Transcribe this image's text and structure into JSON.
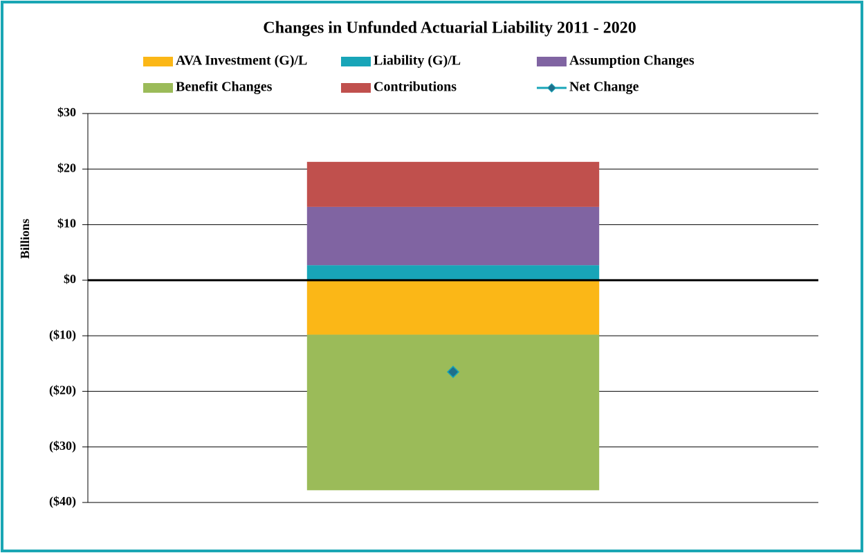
{
  "chart_data": {
    "type": "bar",
    "stacked": true,
    "title": "Changes in Unfunded Actuarial Liability 2011 - 2020",
    "y_label": "Billions",
    "categories": [
      null
    ],
    "series": [
      {
        "name": "AVA Investment (G)/L",
        "color": "#fbb717",
        "values": [
          -9.8
        ]
      },
      {
        "name": "Liability (G)/L",
        "color": "#18a5b8",
        "values": [
          2.7
        ]
      },
      {
        "name": "Assumption Changes",
        "color": "#8064a2",
        "values": [
          10.5
        ]
      },
      {
        "name": "Benefit Changes",
        "color": "#9bbb59",
        "values": [
          -28.0
        ]
      },
      {
        "name": "Contributions",
        "color": "#c0504d",
        "values": [
          8.1
        ]
      },
      {
        "name": "Net Change",
        "color": "#1f6f8b",
        "type": "line",
        "marker": "diamond",
        "values": [
          -16.5
        ]
      }
    ],
    "ylim": [
      -40,
      30
    ],
    "yticks": [
      {
        "value": -40,
        "label": "($40)"
      },
      {
        "value": -30,
        "label": "($30)"
      },
      {
        "value": -20,
        "label": "($20)"
      },
      {
        "value": -10,
        "label": "($10)"
      },
      {
        "value": 0,
        "label": "$0"
      },
      {
        "value": 10,
        "label": "$10"
      },
      {
        "value": 20,
        "label": "$20"
      },
      {
        "value": 30,
        "label": "$30"
      }
    ],
    "grid": true,
    "legend": "top"
  }
}
